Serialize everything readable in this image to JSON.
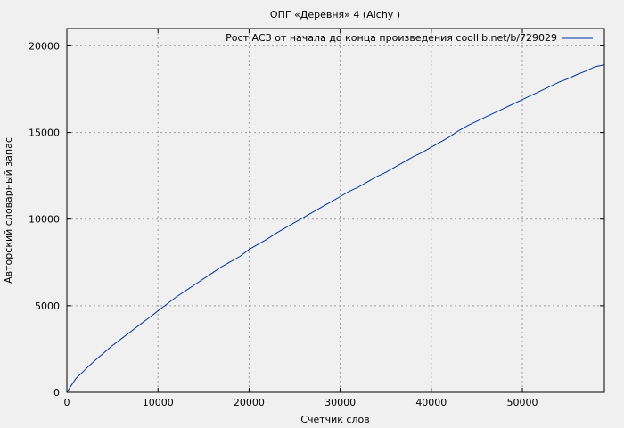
{
  "chart_data": {
    "type": "line",
    "title": "ОПГ «Деревня» 4 (Alchy )",
    "xlabel": "Счетчик слов",
    "ylabel": "Авторский словарный запас",
    "xlim": [
      0,
      59000
    ],
    "ylim": [
      0,
      21000
    ],
    "xticks": [
      0,
      10000,
      20000,
      30000,
      40000,
      50000
    ],
    "yticks": [
      0,
      5000,
      10000,
      15000,
      20000
    ],
    "grid": true,
    "legend_position": "top-right",
    "series": [
      {
        "name": "Рост АСЗ от начала до конца произведения coollib.net/b/729029",
        "color": "#0033a0",
        "x": [
          0,
          500,
          1000,
          2000,
          3000,
          4000,
          5000,
          6000,
          7000,
          8000,
          9000,
          10000,
          11000,
          12000,
          13000,
          14000,
          15000,
          16000,
          17000,
          18000,
          19000,
          20000,
          21000,
          22000,
          23000,
          24000,
          25000,
          26000,
          27000,
          28000,
          29000,
          30000,
          31000,
          32000,
          33000,
          34000,
          35000,
          36000,
          37000,
          38000,
          39000,
          40000,
          41000,
          42000,
          43000,
          44000,
          45000,
          46000,
          47000,
          48000,
          49000,
          50000,
          51000,
          52000,
          53000,
          54000,
          55000,
          56000,
          57000,
          58000,
          59000
        ],
        "y": [
          0,
          400,
          800,
          1300,
          1800,
          2250,
          2700,
          3100,
          3500,
          3900,
          4300,
          4700,
          5100,
          5500,
          5850,
          6200,
          6550,
          6900,
          7250,
          7550,
          7850,
          8250,
          8550,
          8850,
          9200,
          9500,
          9800,
          10100,
          10400,
          10700,
          11000,
          11300,
          11600,
          11850,
          12150,
          12450,
          12700,
          13000,
          13300,
          13600,
          13850,
          14150,
          14450,
          14750,
          15100,
          15400,
          15650,
          15900,
          16150,
          16400,
          16650,
          16900,
          17150,
          17400,
          17650,
          17900,
          18100,
          18350,
          18550,
          18800,
          18900
        ]
      }
    ]
  }
}
